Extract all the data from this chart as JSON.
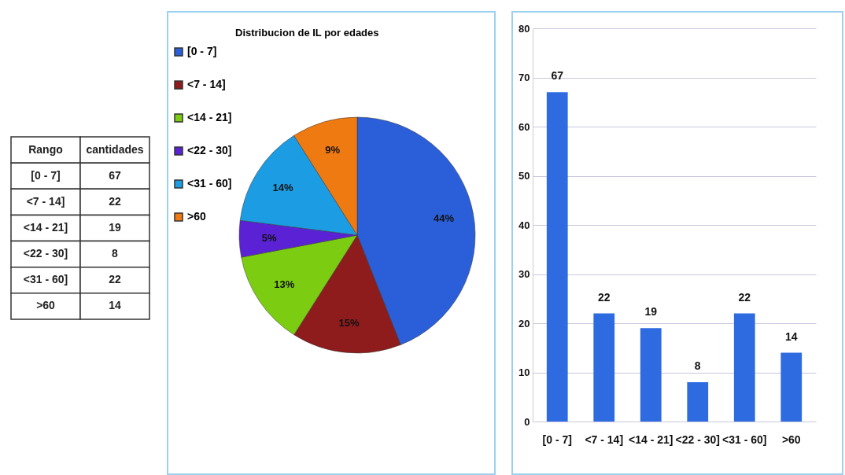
{
  "chart_data": [
    {
      "type": "other",
      "xlabel": "Rango",
      "ylabel": "cantidades",
      "categories": [
        "[0 - 7]",
        "<7 - 14]",
        "<14 - 21]",
        "<22 - 30]",
        "<31 - 60]",
        ">60"
      ],
      "values": [
        67,
        22,
        19,
        8,
        22,
        14
      ],
      "data_labels": true
    },
    {
      "type": "pie",
      "title": "Distribucion de IL por edades",
      "categories": [
        "[0 - 7]",
        "<7 - 14]",
        "<14 - 21]",
        "<22 - 30]",
        "<31 - 60]",
        ">60"
      ],
      "values": [
        44,
        15,
        13,
        5,
        14,
        9
      ],
      "value_labels": [
        "44%",
        "15%",
        "13%",
        "5%",
        "14%",
        "9%"
      ],
      "colors": [
        "#2b5fd9",
        "#8e1c1c",
        "#7ccc12",
        "#5a22d4",
        "#1c9ce2",
        "#f07a12"
      ],
      "legend": "left"
    },
    {
      "type": "bar",
      "categories": [
        "[0 - 7]",
        "<7 - 14]",
        "<14 - 21]",
        "<22 - 30]",
        "<31 - 60]",
        ">60"
      ],
      "values": [
        67,
        22,
        19,
        8,
        22,
        14
      ],
      "color": "#2e6be0",
      "ylim": [
        0,
        80
      ],
      "yticks": [
        0,
        10,
        20,
        30,
        40,
        50,
        60,
        70,
        80
      ],
      "grid": "y",
      "data_labels": true
    }
  ]
}
